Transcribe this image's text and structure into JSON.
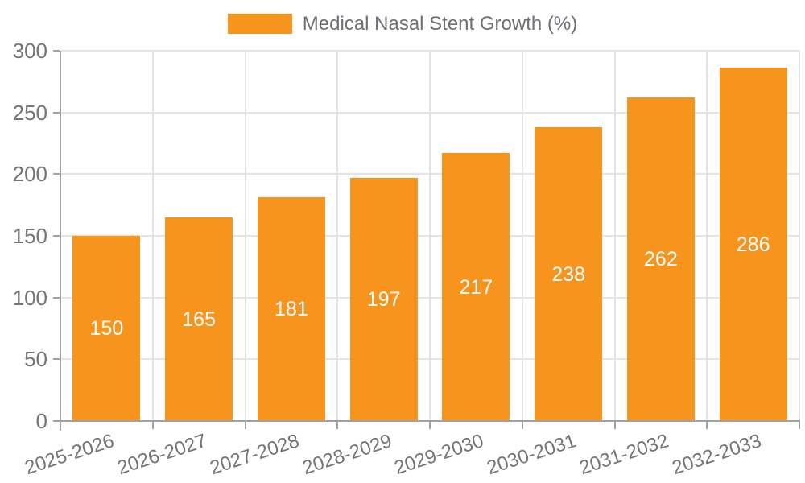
{
  "legend": {
    "label": "Medical Nasal Stent Growth (%)"
  },
  "chart_data": {
    "type": "bar",
    "title": "Medical Nasal Stent Growth (%)",
    "categories": [
      "2025-2026",
      "2026-2027",
      "2027-2028",
      "2028-2029",
      "2029-2030",
      "2030-2031",
      "2031-2032",
      "2032-2033"
    ],
    "values": [
      150,
      165,
      181,
      197,
      217,
      238,
      262,
      286
    ],
    "series_name": "Medical Nasal Stent Growth (%)",
    "xlabel": "",
    "ylabel": "",
    "ylim": [
      0,
      300
    ],
    "yticks": [
      0,
      50,
      100,
      150,
      200,
      250,
      300
    ],
    "grid": true,
    "legend_position": "top-center",
    "value_labels": "inside bars, vertically centered, white"
  },
  "colors": {
    "bar": "#F7941E",
    "grid": "#E4E4E4",
    "axis": "#A1A1A1",
    "tick_text": "#757578",
    "legend_text": "#6F7076",
    "value_label": "#FFFFFF",
    "background": "#FFFFFF"
  }
}
